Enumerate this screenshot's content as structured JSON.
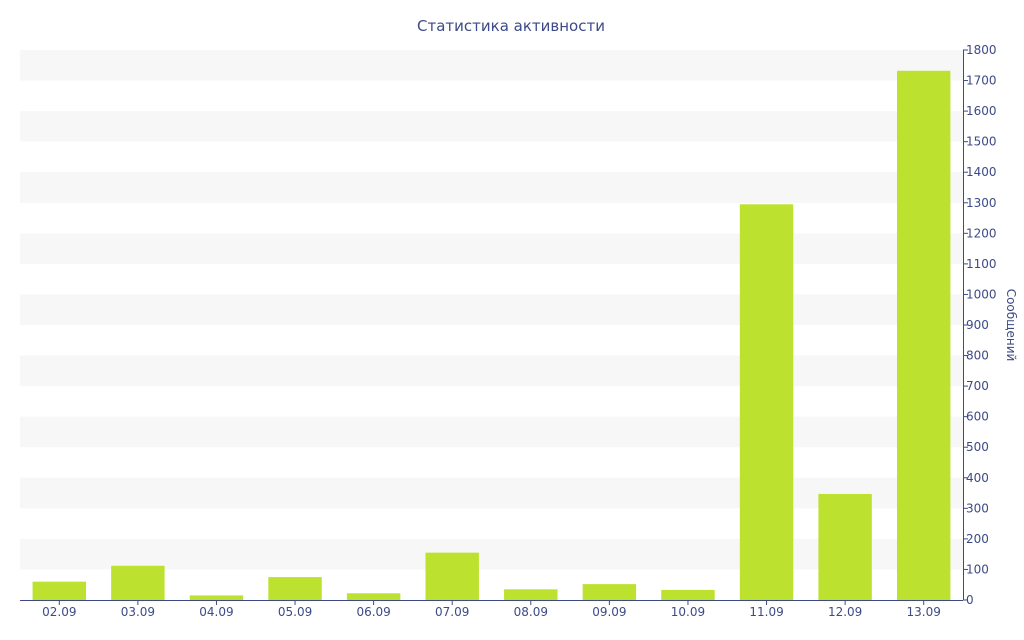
{
  "chart_data": {
    "type": "bar",
    "title": "Статистика активности",
    "xlabel": "",
    "ylabel": "Сообщений",
    "categories": [
      "02.09",
      "03.09",
      "04.09",
      "05.09",
      "06.09",
      "07.09",
      "08.09",
      "09.09",
      "10.09",
      "11.09",
      "12.09",
      "13.09"
    ],
    "values": [
      60,
      112,
      15,
      75,
      22,
      155,
      35,
      52,
      33,
      1295,
      347,
      1732
    ],
    "ylim": [
      0,
      1800
    ],
    "yticks": [
      0,
      100,
      200,
      300,
      400,
      500,
      600,
      700,
      800,
      900,
      1000,
      1100,
      1200,
      1300,
      1400,
      1500,
      1600,
      1700,
      1800
    ],
    "y_axis_side": "right",
    "grid": "alternating horizontal bands",
    "colors": {
      "bar": "#bce22f",
      "band": "#f7f7f7",
      "axis": "#3d4a87",
      "text": "#3d4a87"
    }
  }
}
